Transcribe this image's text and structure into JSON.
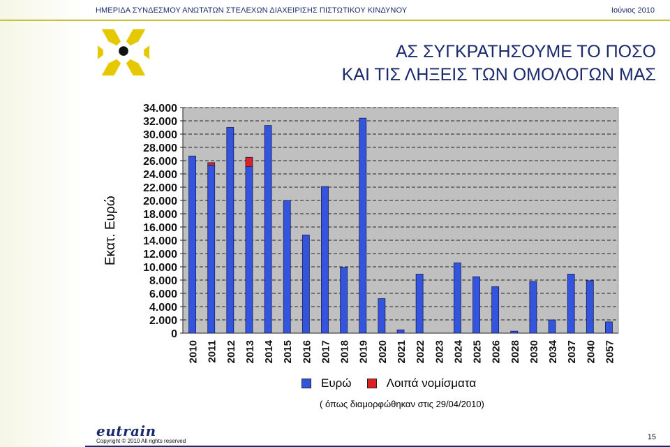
{
  "header": {
    "left_text": "ΗΜΕΡΙΔΑ ΣΥΝΔΕΣΜΟΥ ΑΝΩΤΑΤΩΝ ΣΤΕΛΕΧΩΝ ΔΙΑΧΕΙΡΙΣΗΣ ΠΙΣΤΩΤΙΚΟΥ ΚΙΝΔΥΝΟΥ",
    "right_text": "Ιούνιος  2010"
  },
  "title": {
    "line1": "ΑΣ ΣΥΓΚΡΑΤΗΣΟΥΜΕ ΤΟ ΠΟΣΟ",
    "line2": "ΚΑΙ ΤΙΣ ΛΗΞΕΙΣ ΤΩΝ ΟΜΟΛΟΓΩΝ ΜΑΣ"
  },
  "colors": {
    "header_text": "#1a2a6c",
    "accent": "#c9bf3a",
    "plot_bg": "#c0c0c0",
    "bar_euro": "#3355dd",
    "bar_other": "#dd2222"
  },
  "chart_data": {
    "type": "bar",
    "ylabel": "Εκατ. Ευρώ",
    "xlabel": "",
    "title": "",
    "ylim": [
      0,
      34000
    ],
    "y_ticks": [
      "0",
      "2.000",
      "4.000",
      "6.000",
      "8.000",
      "10.000",
      "12.000",
      "14.000",
      "16.000",
      "18.000",
      "20.000",
      "22.000",
      "24.000",
      "26.000",
      "28.000",
      "30.000",
      "32.000",
      "34.000"
    ],
    "grid": true,
    "stacked": true,
    "categories": [
      "2010",
      "2011",
      "2012",
      "2013",
      "2014",
      "2015",
      "2016",
      "2017",
      "2018",
      "2019",
      "2020",
      "2021",
      "2022",
      "2023",
      "2024",
      "2025",
      "2026",
      "2028",
      "2030",
      "2034",
      "2037",
      "2040",
      "2057"
    ],
    "series": [
      {
        "name": "Ευρώ",
        "color": "#3355dd",
        "values": [
          26700,
          25300,
          31000,
          25100,
          31300,
          20000,
          14800,
          22100,
          9900,
          32400,
          5200,
          500,
          8900,
          0,
          10600,
          8500,
          7000,
          300,
          7800,
          2000,
          8900,
          7900,
          1700
        ]
      },
      {
        "name": "Λοιπά νομίσματα",
        "color": "#dd2222",
        "values": [
          0,
          400,
          0,
          1400,
          0,
          0,
          0,
          0,
          0,
          0,
          0,
          0,
          0,
          0,
          0,
          0,
          0,
          0,
          0,
          0,
          0,
          0,
          0
        ]
      }
    ],
    "legend_position": "bottom"
  },
  "note": "( όπως διαμορφώθηκαν στις 29/04/2010)",
  "footer": {
    "brand": "eutrain",
    "copyright": "Copyright  ©  2010 All rights reserved",
    "page_number": "15"
  }
}
